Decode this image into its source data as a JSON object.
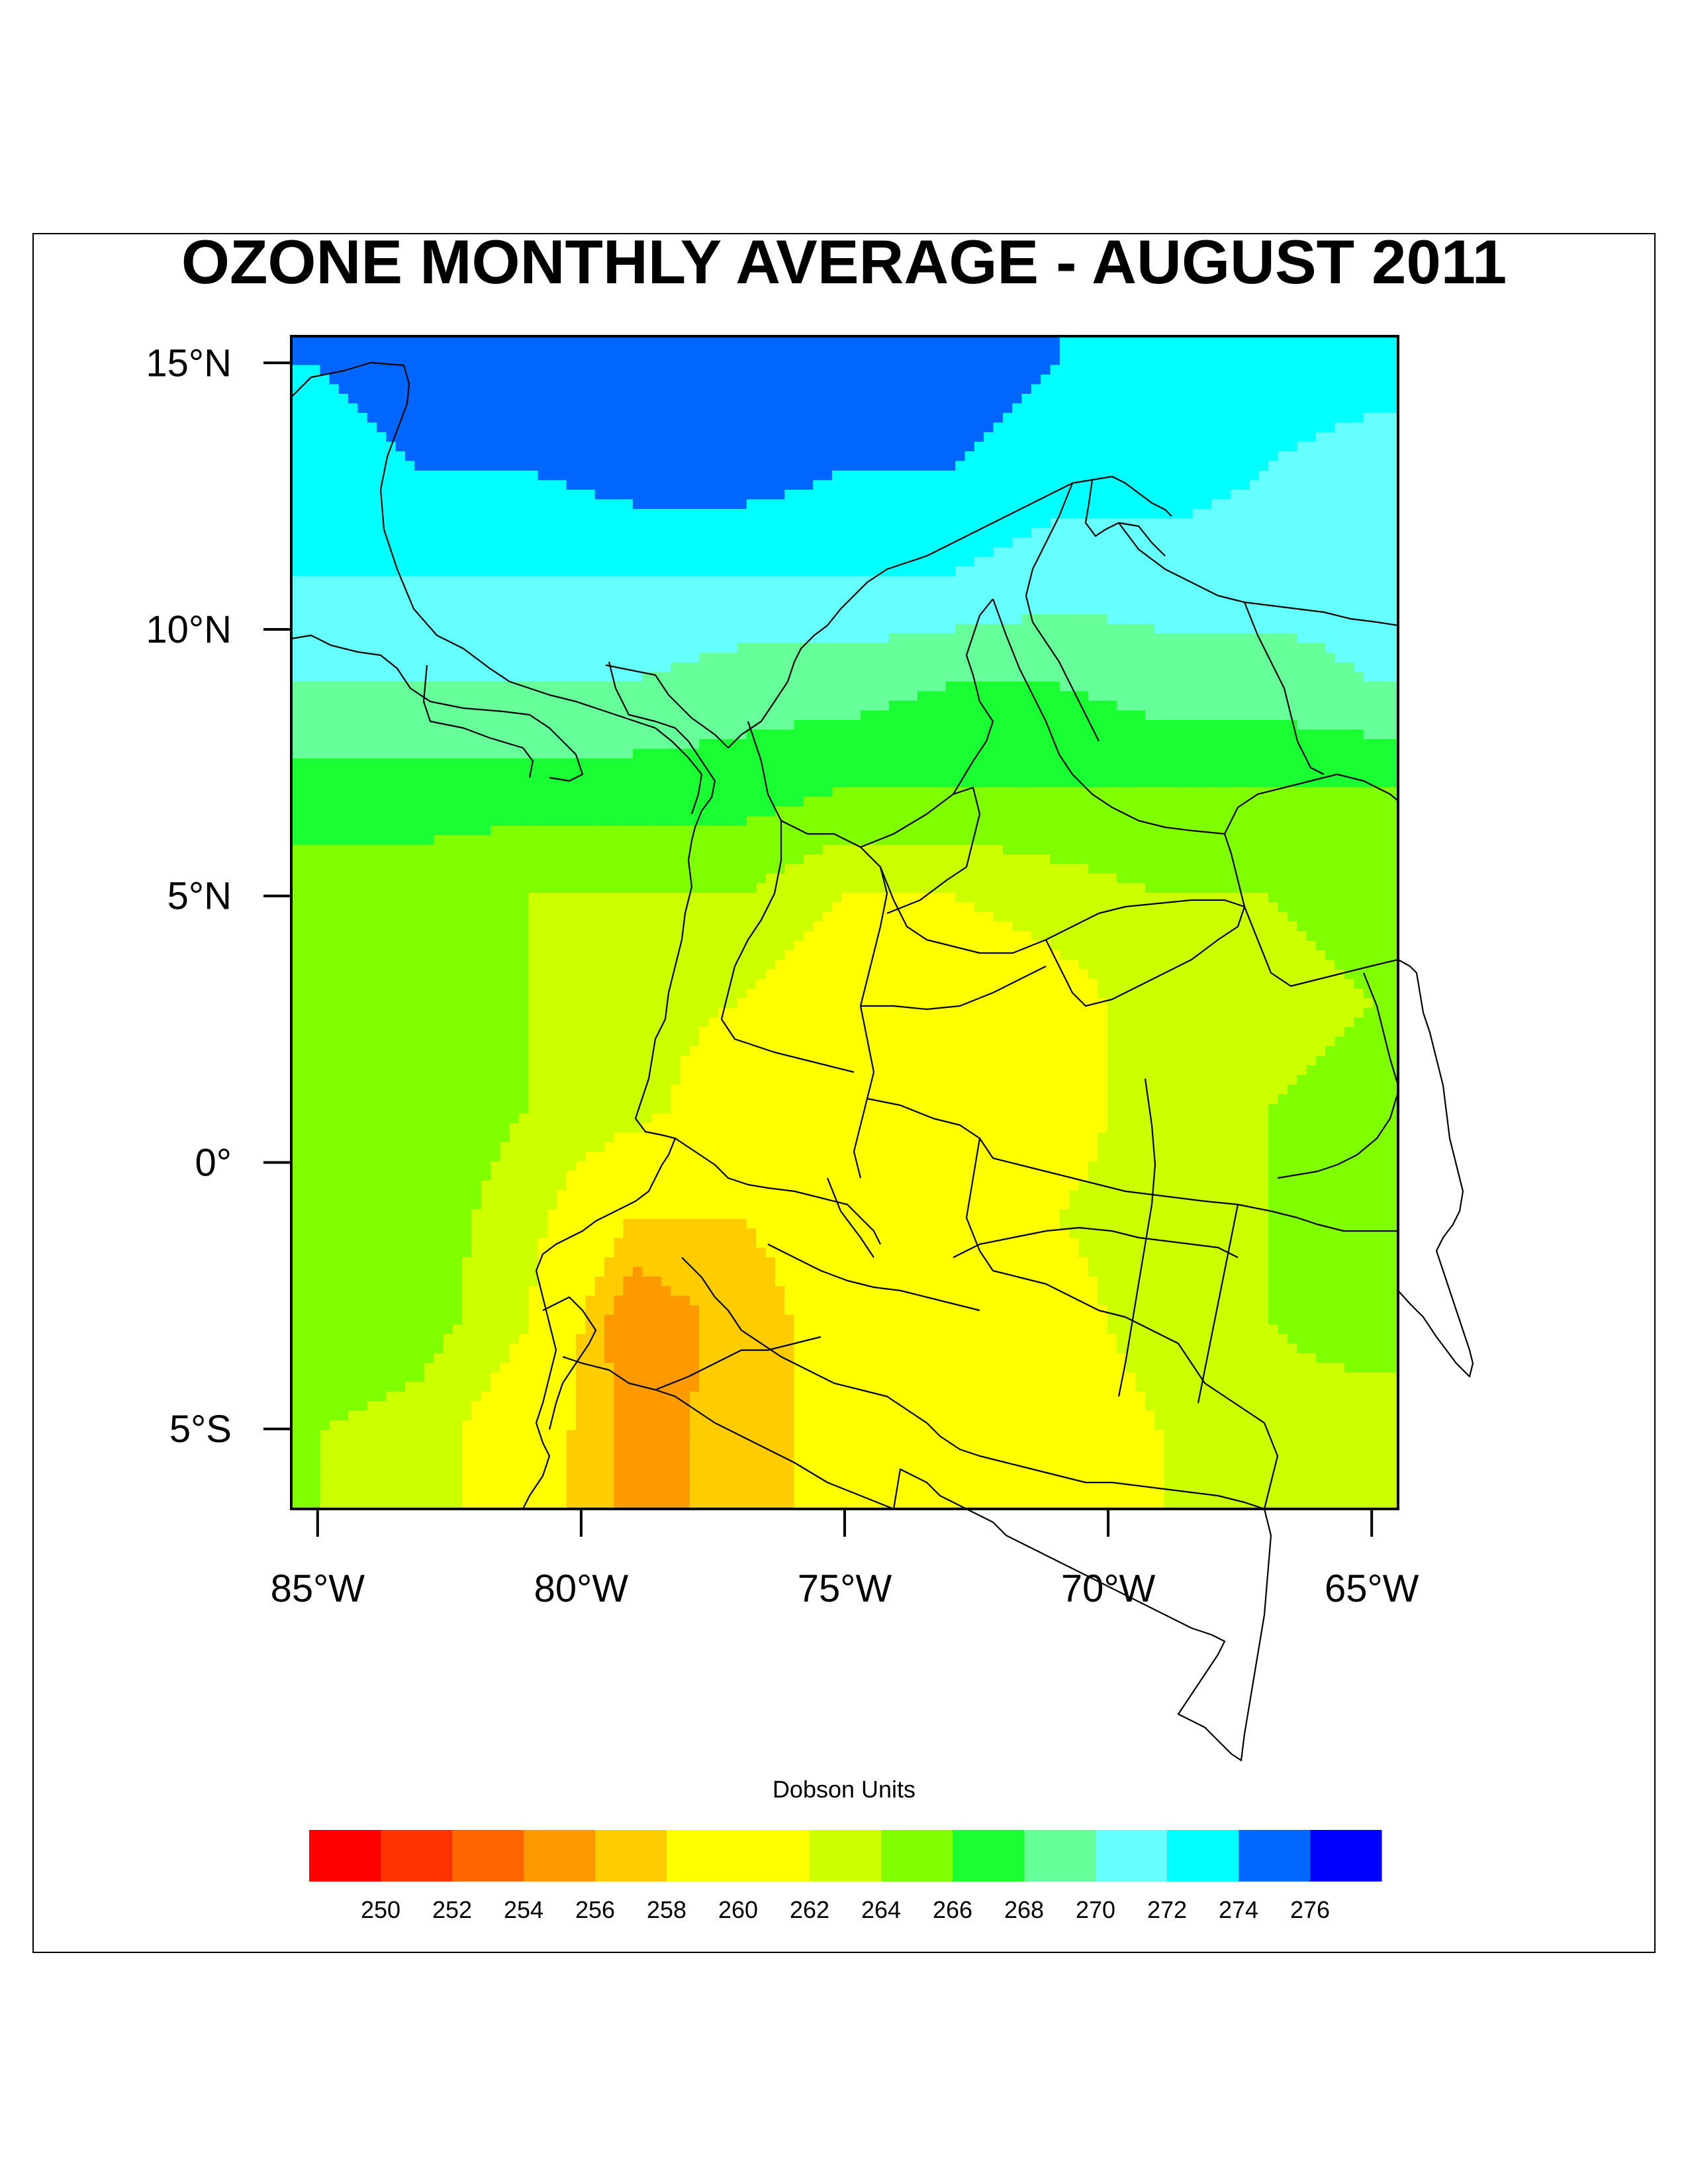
{
  "chart_data": {
    "type": "heatmap",
    "subtype": "filled-contour-map",
    "title": "OZONE MONTHLY AVERAGE - AUGUST 2011",
    "units": "Dobson Units",
    "xlim": [
      -85.5,
      -64.5
    ],
    "ylim": [
      -6.5,
      15.5
    ],
    "xticks": [
      {
        "value": -85,
        "label": "85°W"
      },
      {
        "value": -80,
        "label": "80°W"
      },
      {
        "value": -75,
        "label": "75°W"
      },
      {
        "value": -70,
        "label": "70°W"
      },
      {
        "value": -65,
        "label": "65°W"
      }
    ],
    "yticks": [
      {
        "value": 15,
        "label": "15°N"
      },
      {
        "value": 10,
        "label": "10°N"
      },
      {
        "value": 5,
        "label": "5°N"
      },
      {
        "value": 0,
        "label": "0°"
      },
      {
        "value": -5,
        "label": "5°S"
      }
    ],
    "levels": [
      250,
      252,
      254,
      256,
      258,
      260,
      262,
      264,
      266,
      268,
      270,
      272,
      274,
      276
    ],
    "level_labels": [
      "250",
      "252",
      "254",
      "256",
      "258",
      "260",
      "262",
      "264",
      "266",
      "268",
      "270",
      "272",
      "274",
      "276"
    ],
    "colors": [
      "#ff0000",
      "#ff3300",
      "#ff6600",
      "#ff9900",
      "#ffcc00",
      "#ffff00",
      "#ffff00",
      "#ccff00",
      "#80ff00",
      "#1aff33",
      "#66ff99",
      "#66ffff",
      "#00ffff",
      "#0066ff",
      "#0000ff"
    ],
    "field": {
      "lon": [
        -85,
        -83,
        -81,
        -79,
        -77,
        -75,
        -73,
        -71,
        -69,
        -67,
        -65
      ],
      "lat": [
        15,
        13,
        11,
        9,
        7,
        5,
        3,
        1,
        -1,
        -3,
        -5
      ],
      "values": [
        [
          274,
          275,
          275,
          276,
          275,
          275,
          275,
          274,
          273,
          273,
          273
        ],
        [
          273,
          274,
          274,
          275,
          275,
          274,
          274,
          273,
          273,
          272,
          271
        ],
        [
          272,
          272,
          272,
          272,
          272,
          272,
          272,
          271,
          271,
          271,
          271
        ],
        [
          270,
          270,
          270,
          270,
          269,
          269,
          268,
          268,
          269,
          269,
          270
        ],
        [
          267,
          267,
          267,
          267,
          267,
          266,
          266,
          266,
          266,
          266,
          266
        ],
        [
          265,
          265,
          264,
          264,
          264,
          262,
          262,
          263,
          264,
          264,
          265
        ],
        [
          265,
          264,
          264,
          263,
          262,
          260,
          260,
          261,
          263,
          263,
          264
        ],
        [
          265,
          265,
          264,
          263,
          260,
          259,
          260,
          261,
          263,
          264,
          265
        ],
        [
          265,
          265,
          263,
          258,
          258,
          259,
          260,
          262,
          263,
          264,
          265
        ],
        [
          266,
          265,
          262,
          254,
          257,
          259,
          260,
          261,
          263,
          264,
          265
        ],
        [
          264,
          263,
          260,
          255,
          257,
          259,
          260,
          260,
          262,
          263,
          263
        ]
      ]
    },
    "colorbar_title": "Dobson Units"
  }
}
